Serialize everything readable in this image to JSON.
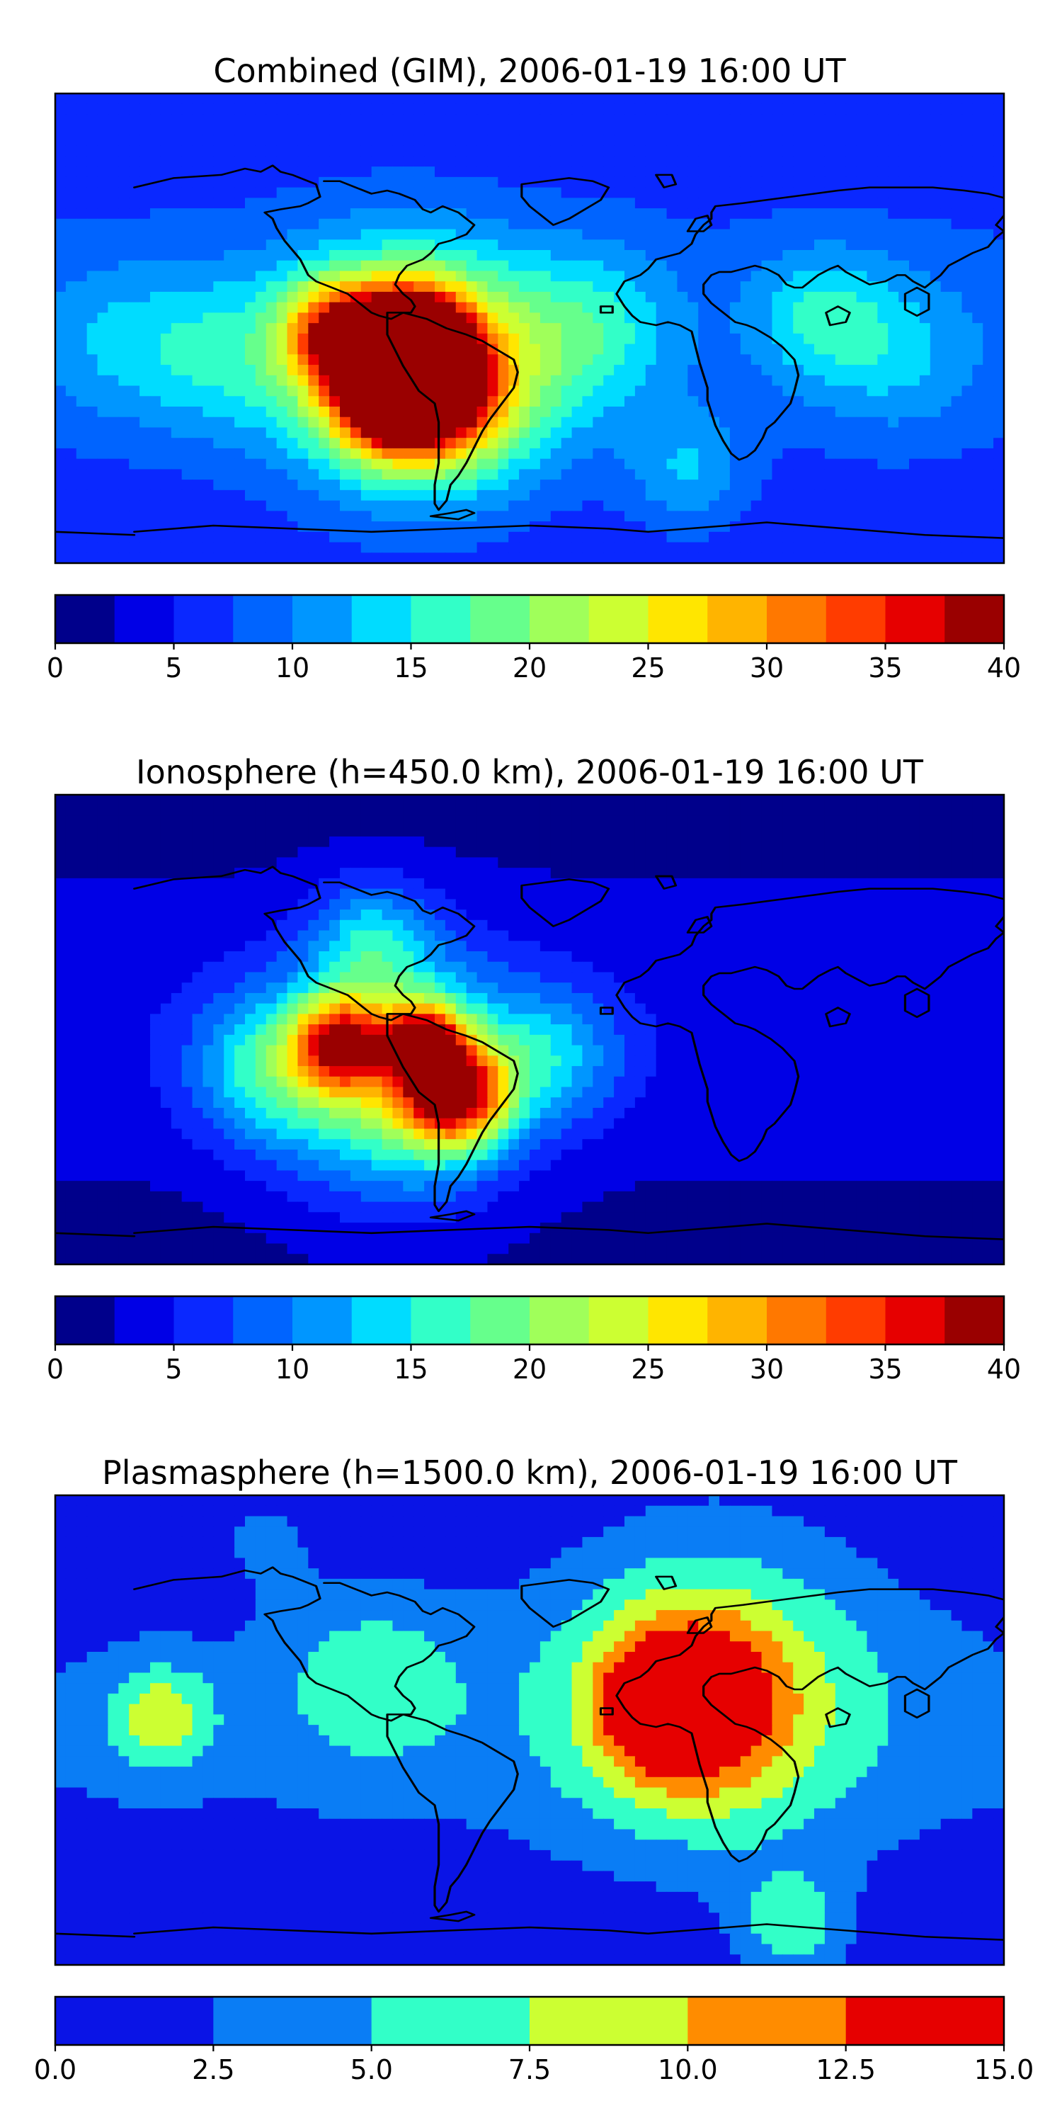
{
  "chart_data": [
    {
      "type": "heatmap",
      "title": "Combined (GIM), 2006-01-19 16:00 UT",
      "xlabel": "",
      "ylabel": "",
      "xlim": [
        -180,
        180
      ],
      "ylim": [
        -90,
        90
      ],
      "grid": false,
      "colorbar": {
        "levels": [
          0,
          2.5,
          5,
          7.5,
          10,
          12.5,
          15,
          17.5,
          20,
          22.5,
          25,
          27.5,
          30,
          32.5,
          35,
          37.5,
          40
        ],
        "colors": [
          "#00008b",
          "#0000e6",
          "#0a28ff",
          "#0064ff",
          "#0096ff",
          "#00dcff",
          "#32ffc8",
          "#66ff8c",
          "#a0ff5a",
          "#ccff32",
          "#ffe600",
          "#ffb400",
          "#ff7800",
          "#ff3c00",
          "#e60000",
          "#9a0000"
        ],
        "tick_labels": [
          "0",
          "5",
          "10",
          "15",
          "20",
          "25",
          "30",
          "35",
          "40"
        ]
      },
      "features": [
        {
          "lon": -72,
          "lat": -3,
          "value": 30,
          "spread": 14
        },
        {
          "lon": -43,
          "lat": -5,
          "value": 37,
          "spread": 14
        },
        {
          "lon": -35,
          "lat": -25,
          "value": 28,
          "spread": 16
        },
        {
          "lon": -55,
          "lat": -28,
          "value": 28,
          "spread": 14
        },
        {
          "lon": -50,
          "lat": -15,
          "value": 24,
          "spread": 32
        },
        {
          "lon": -20,
          "lat": -20,
          "value": 15,
          "spread": 28
        },
        {
          "lon": 25,
          "lat": 0,
          "value": 14,
          "spread": 22
        },
        {
          "lon": 110,
          "lat": 5,
          "value": 14,
          "spread": 18
        },
        {
          "lon": 140,
          "lat": -10,
          "value": 12,
          "spread": 22
        },
        {
          "lon": -120,
          "lat": -10,
          "value": 13,
          "spread": 22
        },
        {
          "lon": -160,
          "lat": -5,
          "value": 11,
          "spread": 22
        },
        {
          "lon": 60,
          "lat": -55,
          "value": 13,
          "spread": 16
        }
      ],
      "base_value": 7
    },
    {
      "type": "heatmap",
      "title": "Ionosphere  (h=450.0 km), 2006-01-19 16:00 UT",
      "xlabel": "",
      "ylabel": "",
      "xlim": [
        -180,
        180
      ],
      "ylim": [
        -90,
        90
      ],
      "grid": false,
      "colorbar": {
        "levels": [
          0,
          2.5,
          5,
          7.5,
          10,
          12.5,
          15,
          17.5,
          20,
          22.5,
          25,
          27.5,
          30,
          32.5,
          35,
          37.5,
          40
        ],
        "colors": [
          "#00008b",
          "#0000e6",
          "#0a28ff",
          "#0064ff",
          "#0096ff",
          "#00dcff",
          "#32ffc8",
          "#66ff8c",
          "#a0ff5a",
          "#ccff32",
          "#ffe600",
          "#ffb400",
          "#ff7800",
          "#ff3c00",
          "#e60000",
          "#9a0000"
        ],
        "tick_labels": [
          "0",
          "5",
          "10",
          "15",
          "20",
          "25",
          "30",
          "35",
          "40"
        ]
      },
      "features": [
        {
          "lon": -72,
          "lat": -5,
          "value": 25,
          "spread": 12
        },
        {
          "lon": -40,
          "lat": -5,
          "value": 26,
          "spread": 10
        },
        {
          "lon": -28,
          "lat": -25,
          "value": 30,
          "spread": 14
        },
        {
          "lon": -50,
          "lat": -18,
          "value": 22,
          "spread": 30
        },
        {
          "lon": -100,
          "lat": -15,
          "value": 13,
          "spread": 20
        },
        {
          "lon": -60,
          "lat": 35,
          "value": 12,
          "spread": 16
        },
        {
          "lon": 10,
          "lat": -10,
          "value": 11,
          "spread": 18
        }
      ],
      "base_value": 3
    },
    {
      "type": "heatmap",
      "title": "Plasmasphere (h=1500.0 km), 2006-01-19 16:00 UT",
      "xlabel": "",
      "ylabel": "",
      "xlim": [
        -180,
        180
      ],
      "ylim": [
        -90,
        90
      ],
      "grid": false,
      "colorbar": {
        "levels": [
          0,
          2.5,
          5,
          7.5,
          10,
          12.5,
          15
        ],
        "colors": [
          "#0a14e6",
          "#0a7df5",
          "#32ffc8",
          "#ccff32",
          "#ff8c00",
          "#e60000"
        ],
        "tick_labels": [
          "0.0",
          "2.5",
          "5.0",
          "7.5",
          "10.0",
          "12.5",
          "15.0"
        ]
      },
      "features": [
        {
          "lon": 52,
          "lat": 10,
          "value": 14,
          "spread": 12
        },
        {
          "lon": 60,
          "lat": 10,
          "value": 11,
          "spread": 24
        },
        {
          "lon": 70,
          "lat": 18,
          "value": 8.5,
          "spread": 45
        },
        {
          "lon": -140,
          "lat": 5,
          "value": 8.5,
          "spread": 14
        },
        {
          "lon": -60,
          "lat": 20,
          "value": 6,
          "spread": 25
        },
        {
          "lon": 100,
          "lat": -75,
          "value": 7.5,
          "spread": 15
        },
        {
          "lon": -100,
          "lat": 75,
          "value": 4,
          "spread": 15
        }
      ],
      "base_value": 1.6
    }
  ]
}
